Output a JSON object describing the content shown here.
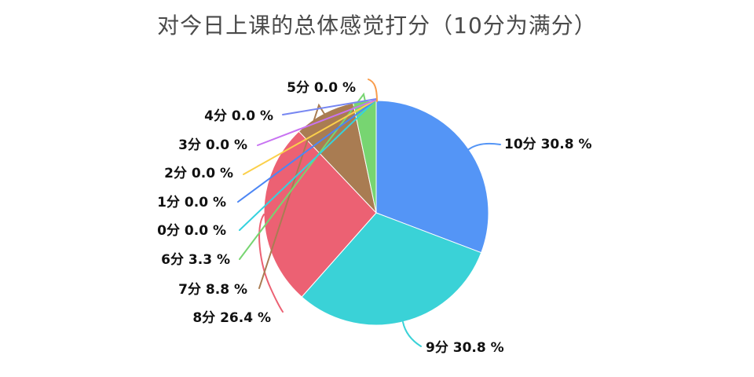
{
  "chart_data": {
    "type": "pie",
    "title": "对今日上课的总体感觉打分（10分为满分）",
    "value_unit": "%",
    "start_angle": "12-oclock",
    "direction": "clockwise",
    "legend_position": "none",
    "title_color": "#4a4a4a",
    "label_color": "#111111",
    "background_color": "#ffffff",
    "slices": [
      {
        "category": "10分",
        "value": 30.8,
        "label": "10分 30.8 %",
        "color": "#5495f6"
      },
      {
        "category": "9分",
        "value": 30.8,
        "label": "9分 30.8 %",
        "color": "#3ad2d7"
      },
      {
        "category": "8分",
        "value": 26.4,
        "label": "8分 26.4 %",
        "color": "#ec6173"
      },
      {
        "category": "7分",
        "value": 8.8,
        "label": "7分 8.8 %",
        "color": "#a97c52"
      },
      {
        "category": "6分",
        "value": 3.3,
        "label": "6分 3.3 %",
        "color": "#77d571"
      },
      {
        "category": "0分",
        "value": 0.0,
        "label": "0分 0.0 %",
        "color": "#35d2de"
      },
      {
        "category": "1分",
        "value": 0.0,
        "label": "1分 0.0 %",
        "color": "#4c86f4"
      },
      {
        "category": "2分",
        "value": 0.0,
        "label": "2分 0.0 %",
        "color": "#fbd04b"
      },
      {
        "category": "3分",
        "value": 0.0,
        "label": "3分 0.0 %",
        "color": "#c873f2"
      },
      {
        "category": "4分",
        "value": 0.0,
        "label": "4分 0.0 %",
        "color": "#7787f2"
      },
      {
        "category": "5分",
        "value": 0.0,
        "label": "5分 0.0 %",
        "color": "#f99c4b"
      }
    ]
  }
}
